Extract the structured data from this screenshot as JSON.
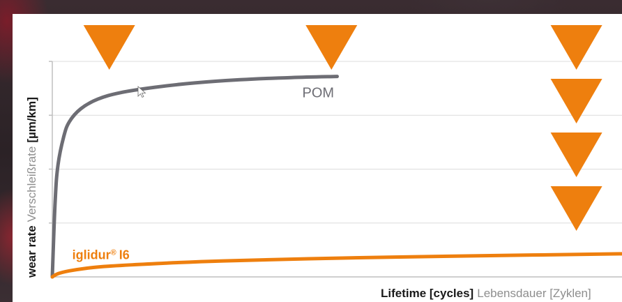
{
  "chart_data": {
    "type": "line",
    "xlabel": "Lifetime [cycles]",
    "xlabel_secondary": "Lebensdauer [Zyklen]",
    "ylabel": "wear rate",
    "ylabel_secondary": "Verschleißrate",
    "ylabel_unit": "[µm/km]",
    "grid": true,
    "axis_values_shown": false,
    "series": [
      {
        "name": "POM",
        "color": "#6d6d74",
        "x": [
          0,
          0.005,
          0.01,
          0.02,
          0.03,
          0.05,
          0.08,
          0.12,
          0.18,
          0.25,
          0.33,
          0.42,
          0.5
        ],
        "y": [
          0,
          0.35,
          0.52,
          0.65,
          0.72,
          0.78,
          0.825,
          0.855,
          0.88,
          0.9,
          0.915,
          0.925,
          0.93
        ]
      },
      {
        "name_main": "iglidur",
        "name_mark": "®",
        "name_suffix": "I6",
        "color": "#ee7f0e",
        "x": [
          0,
          0.01,
          0.03,
          0.06,
          0.1,
          0.2,
          0.3,
          0.45,
          0.6,
          0.8,
          1.0
        ],
        "y": [
          0,
          0.015,
          0.028,
          0.04,
          0.05,
          0.064,
          0.074,
          0.084,
          0.092,
          0.1,
          0.107
        ]
      }
    ],
    "markers": {
      "shape": "downward-triangle",
      "color": "#ee7f0e",
      "columns": [
        {
          "x": 0.1,
          "count": 1
        },
        {
          "x": 0.49,
          "count": 1
        },
        {
          "x": 0.92,
          "count": 4
        }
      ]
    }
  }
}
